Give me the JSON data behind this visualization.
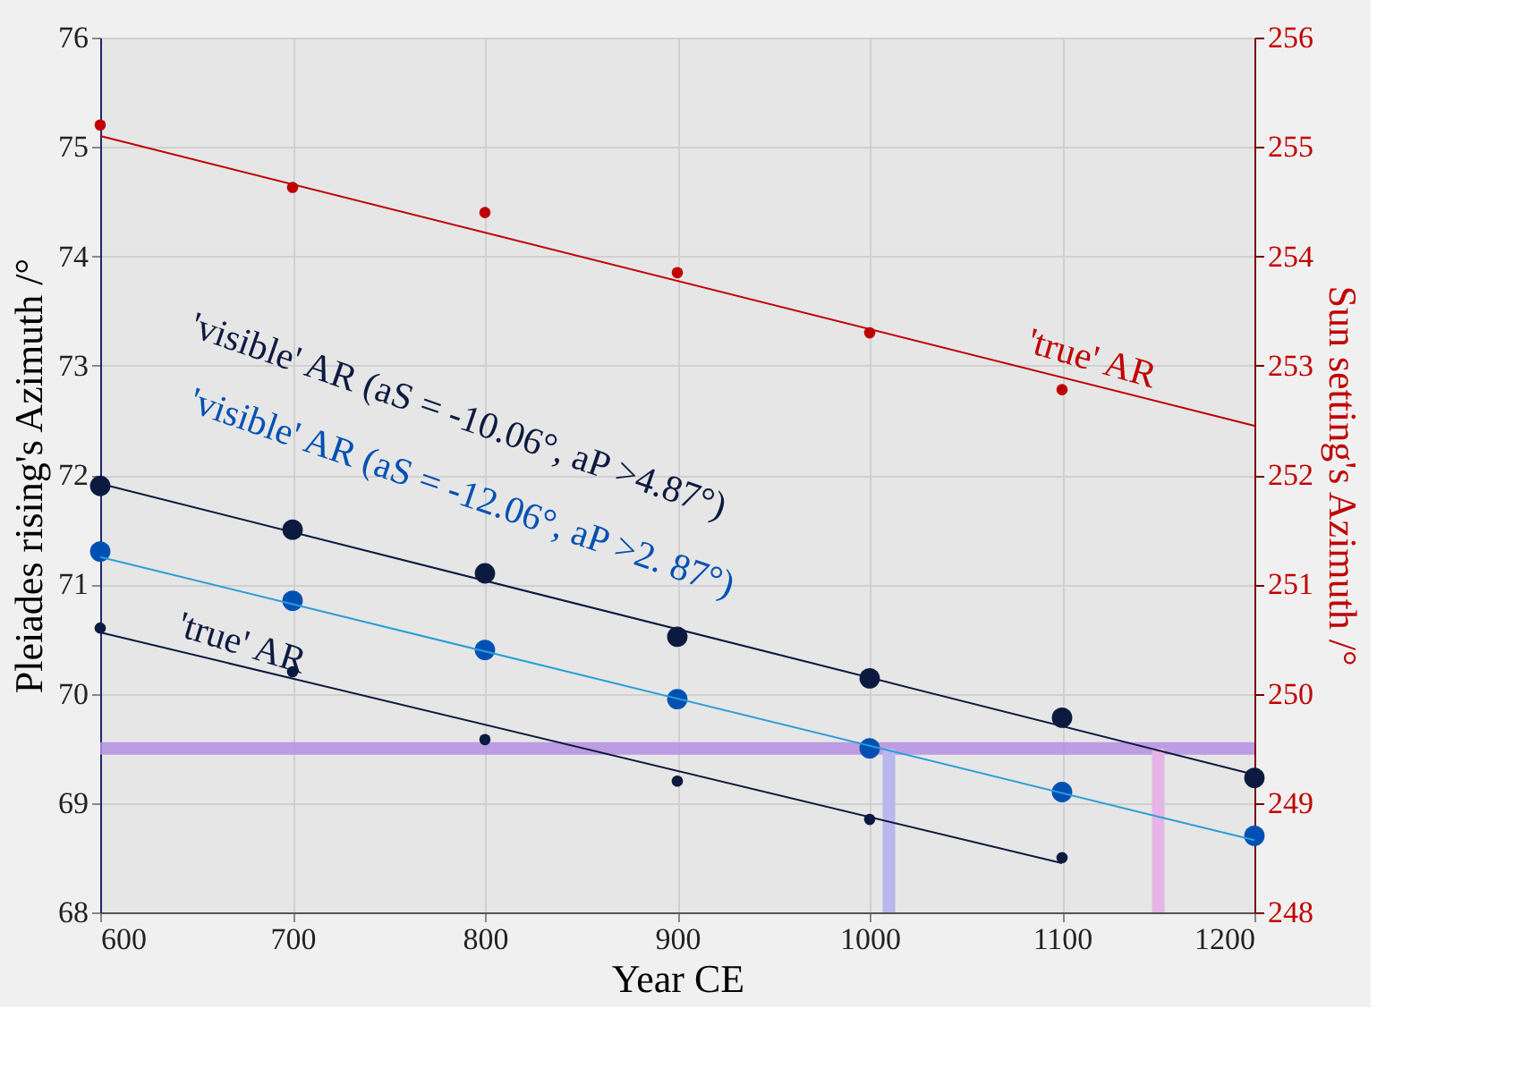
{
  "chart_data": {
    "type": "scatter",
    "xlabel": "Year CE",
    "ylabel": "Pleiades rising's Azimuth /°",
    "y2label": "Sun setting's Azimuth /°",
    "x": [
      600,
      700,
      800,
      900,
      1000,
      1100,
      1200
    ],
    "series": [
      {
        "color": "#0d1a40",
        "marker": "circle",
        "values": [
          71.9,
          71.5,
          71.1,
          70.52,
          70.14,
          69.78,
          69.23
        ]
      },
      {
        "type": "line",
        "color": "#0d1a40",
        "x": [
          600,
          1200
        ],
        "values": [
          71.92,
          69.26
        ]
      },
      {
        "color": "#0050b4",
        "marker": "circle",
        "values": [
          71.3,
          70.85,
          70.4,
          69.95,
          69.5,
          69.1,
          68.7
        ]
      },
      {
        "type": "line",
        "color": "#2a9fd6",
        "x": [
          600,
          1200
        ],
        "values": [
          71.25,
          68.66
        ]
      },
      {
        "color": "#0d1a40",
        "marker": "circle",
        "x": [
          600,
          700,
          800,
          900,
          1000,
          1100
        ],
        "values": [
          70.6,
          70.2,
          69.58,
          69.2,
          68.85,
          68.5
        ]
      },
      {
        "type": "line",
        "color": "#0d1a40",
        "x": [
          600,
          1100
        ],
        "values": [
          70.56,
          68.45
        ]
      },
      {
        "color": "#c00000",
        "marker": "circle",
        "axis": "y2",
        "x": [
          600,
          700,
          800,
          900,
          1000,
          1100
        ],
        "values": [
          255.2,
          254.63,
          254.4,
          253.85,
          253.3,
          252.78
        ]
      },
      {
        "type": "line",
        "color": "#c00000",
        "axis": "y2",
        "x": [
          600,
          1200
        ],
        "values": [
          255.1,
          252.45
        ]
      }
    ],
    "xlim": [
      600,
      1200
    ],
    "xticks": [
      600,
      700,
      800,
      900,
      1000,
      1100,
      1200
    ],
    "ylim": [
      68,
      76
    ],
    "yticks": [
      68,
      69,
      70,
      71,
      72,
      73,
      74,
      75,
      76
    ],
    "y2lim": [
      248,
      256
    ],
    "y2ticks": [
      248,
      249,
      250,
      251,
      252,
      253,
      254,
      255,
      256
    ],
    "grid": true,
    "ref_lines": [
      {
        "axis": "y",
        "value": 69.5,
        "color": "#b48ee0"
      },
      {
        "axis": "x",
        "value": 1010,
        "color": "#b8b8ec"
      },
      {
        "axis": "x",
        "value": 1150,
        "color": "#e6b4e6"
      }
    ],
    "annotations": [
      "'visible' AR (aS = -10.06°, aP >4.87°)",
      "'visible' AR (aS = -12.06°, aP >2. 87°)",
      "'true' AR",
      "'true' AR"
    ]
  }
}
